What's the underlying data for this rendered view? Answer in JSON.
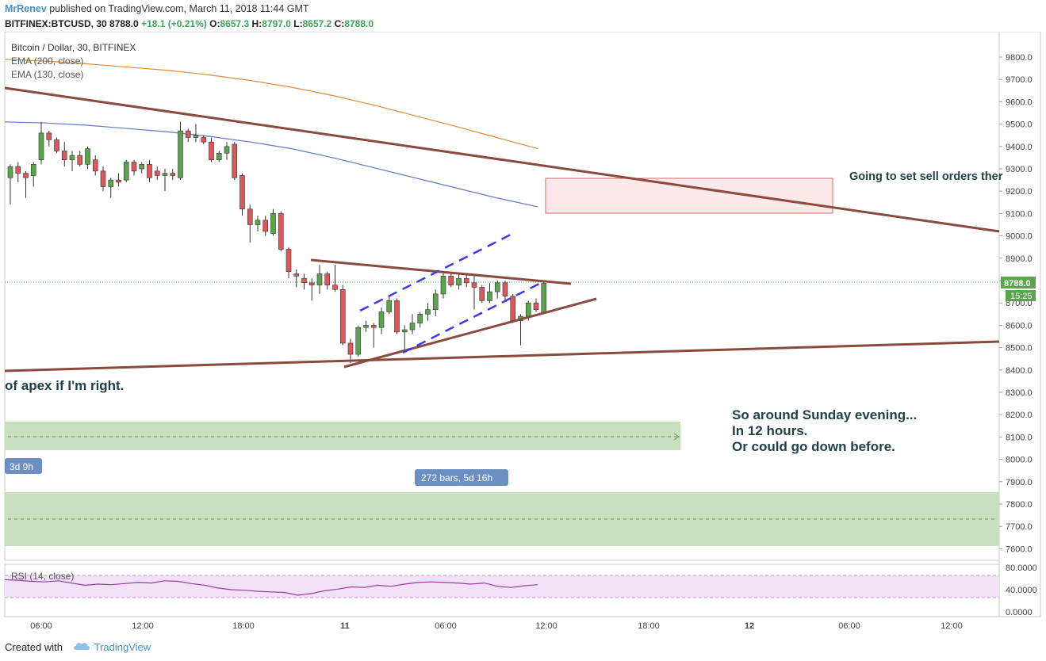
{
  "publish": {
    "author": "MrRenev",
    "text": " published on TradingView.com, March 11, 2018 11:44 GMT"
  },
  "symbol": {
    "name": "BITFINEX:BTCUSD, 30",
    "last": "8788.0",
    "change": "+18.1 (+0.21%)",
    "o_label": "O:",
    "o": "8657.3",
    "h_label": "H:",
    "h": "8797.0",
    "l_label": "L:",
    "l": "8657.2",
    "c_label": "C:",
    "c": "8788.0"
  },
  "legend": {
    "title": "Bitcoin / Dollar, 30, BITFINEX",
    "ema200": "EMA (200, close)",
    "ema130": "EMA (130, close)"
  },
  "annotations": {
    "sell_note": "Going to set sell orders ther",
    "apex_note": "of apex if I'm right.",
    "sunday_1": "So around Sunday evening...",
    "sunday_2": "In 12 hours.",
    "sunday_3": "Or could go down before.",
    "badge_3d": "3d 9h",
    "badge_bars": "272 bars, 5d 16h"
  },
  "price_scale": {
    "last_label": "8788.0",
    "countdown": "15:25",
    "ticks": [
      "9800.0",
      "9700.0",
      "9600.0",
      "9500.0",
      "9400.0",
      "9300.0",
      "9200.0",
      "9100.0",
      "9000.0",
      "8900.0",
      "8800.0",
      "8700.0",
      "8600.0",
      "8500.0",
      "8400.0",
      "8300.0",
      "8200.0",
      "8100.0",
      "8000.0",
      "7900.0",
      "7800.0",
      "7700.0",
      "7600.0"
    ]
  },
  "rsi": {
    "label": "RSI (14, close)",
    "ticks": [
      "80.0000",
      "40.0000",
      "0.0000"
    ]
  },
  "time_axis": [
    "06:00",
    "12:00",
    "18:00",
    "11",
    "06:00",
    "12:00",
    "18:00",
    "12",
    "06:00",
    "12:00"
  ],
  "footer": {
    "created": "Created with",
    "brand": "TradingView"
  },
  "colors": {
    "up": "#5ba44e",
    "down": "#d8585b",
    "ema200": "#e08a3c",
    "ema130": "#5a78c8",
    "trend": "#8a4a3e",
    "channel": "#3a3aee",
    "zone_green": "#c7e0bd",
    "zone_red": "#fbe8e8",
    "rsi_band": "#f1e2f8",
    "rsi_line": "#9a3aa6",
    "badge": "#6b8fc0"
  },
  "chart_data": {
    "type": "candlestick",
    "title": "Bitcoin / Dollar, 30, BITFINEX",
    "interval": "30 min",
    "ylim": [
      7550,
      9900
    ],
    "rsi_ylim": [
      0,
      80
    ],
    "candles": [
      {
        "o": 9260,
        "h": 9320,
        "l": 9140,
        "c": 9310
      },
      {
        "o": 9310,
        "h": 9330,
        "l": 9240,
        "c": 9280
      },
      {
        "o": 9280,
        "h": 9290,
        "l": 9170,
        "c": 9260
      },
      {
        "o": 9270,
        "h": 9330,
        "l": 9220,
        "c": 9320
      },
      {
        "o": 9340,
        "h": 9510,
        "l": 9320,
        "c": 9460
      },
      {
        "o": 9460,
        "h": 9470,
        "l": 9400,
        "c": 9430
      },
      {
        "o": 9430,
        "h": 9440,
        "l": 9370,
        "c": 9380
      },
      {
        "o": 9380,
        "h": 9420,
        "l": 9310,
        "c": 9340
      },
      {
        "o": 9340,
        "h": 9380,
        "l": 9290,
        "c": 9360
      },
      {
        "o": 9360,
        "h": 9380,
        "l": 9310,
        "c": 9320
      },
      {
        "o": 9320,
        "h": 9400,
        "l": 9300,
        "c": 9390
      },
      {
        "o": 9340,
        "h": 9360,
        "l": 9270,
        "c": 9290
      },
      {
        "o": 9290,
        "h": 9310,
        "l": 9200,
        "c": 9220
      },
      {
        "o": 9220,
        "h": 9260,
        "l": 9170,
        "c": 9250
      },
      {
        "o": 9250,
        "h": 9280,
        "l": 9220,
        "c": 9240
      },
      {
        "o": 9250,
        "h": 9340,
        "l": 9240,
        "c": 9330
      },
      {
        "o": 9330,
        "h": 9340,
        "l": 9270,
        "c": 9290
      },
      {
        "o": 9300,
        "h": 9330,
        "l": 9280,
        "c": 9320
      },
      {
        "o": 9320,
        "h": 9340,
        "l": 9240,
        "c": 9260
      },
      {
        "o": 9290,
        "h": 9310,
        "l": 9250,
        "c": 9270
      },
      {
        "o": 9270,
        "h": 9300,
        "l": 9200,
        "c": 9280
      },
      {
        "o": 9280,
        "h": 9300,
        "l": 9250,
        "c": 9270
      },
      {
        "o": 9260,
        "h": 9510,
        "l": 9250,
        "c": 9470
      },
      {
        "o": 9470,
        "h": 9480,
        "l": 9420,
        "c": 9440
      },
      {
        "o": 9440,
        "h": 9500,
        "l": 9420,
        "c": 9450
      },
      {
        "o": 9440,
        "h": 9450,
        "l": 9410,
        "c": 9420
      },
      {
        "o": 9420,
        "h": 9440,
        "l": 9330,
        "c": 9340
      },
      {
        "o": 9340,
        "h": 9380,
        "l": 9330,
        "c": 9370
      },
      {
        "o": 9370,
        "h": 9420,
        "l": 9340,
        "c": 9400
      },
      {
        "o": 9410,
        "h": 9420,
        "l": 9250,
        "c": 9260
      },
      {
        "o": 9270,
        "h": 9280,
        "l": 9090,
        "c": 9120
      },
      {
        "o": 9120,
        "h": 9140,
        "l": 8970,
        "c": 9050
      },
      {
        "o": 9050,
        "h": 9090,
        "l": 9020,
        "c": 9070
      },
      {
        "o": 9070,
        "h": 9090,
        "l": 9000,
        "c": 9020
      },
      {
        "o": 9010,
        "h": 9120,
        "l": 9000,
        "c": 9100
      },
      {
        "o": 9100,
        "h": 9110,
        "l": 8930,
        "c": 8940
      },
      {
        "o": 8940,
        "h": 8950,
        "l": 8810,
        "c": 8840
      },
      {
        "o": 8830,
        "h": 8850,
        "l": 8770,
        "c": 8820
      },
      {
        "o": 8810,
        "h": 8830,
        "l": 8760,
        "c": 8790
      },
      {
        "o": 8790,
        "h": 8810,
        "l": 8710,
        "c": 8780
      },
      {
        "o": 8780,
        "h": 8870,
        "l": 8740,
        "c": 8830
      },
      {
        "o": 8830,
        "h": 8840,
        "l": 8760,
        "c": 8780
      },
      {
        "o": 8780,
        "h": 8870,
        "l": 8750,
        "c": 8760
      },
      {
        "o": 8760,
        "h": 8780,
        "l": 8510,
        "c": 8520
      },
      {
        "o": 8520,
        "h": 8540,
        "l": 8430,
        "c": 8470
      },
      {
        "o": 8470,
        "h": 8600,
        "l": 8460,
        "c": 8590
      },
      {
        "o": 8590,
        "h": 8620,
        "l": 8570,
        "c": 8600
      },
      {
        "o": 8600,
        "h": 8610,
        "l": 8500,
        "c": 8590
      },
      {
        "o": 8590,
        "h": 8680,
        "l": 8560,
        "c": 8660
      },
      {
        "o": 8660,
        "h": 8730,
        "l": 8650,
        "c": 8710
      },
      {
        "o": 8710,
        "h": 8720,
        "l": 8560,
        "c": 8570
      },
      {
        "o": 8570,
        "h": 8600,
        "l": 8480,
        "c": 8580
      },
      {
        "o": 8580,
        "h": 8650,
        "l": 8560,
        "c": 8610
      },
      {
        "o": 8610,
        "h": 8660,
        "l": 8590,
        "c": 8650
      },
      {
        "o": 8650,
        "h": 8700,
        "l": 8620,
        "c": 8670
      },
      {
        "o": 8670,
        "h": 8760,
        "l": 8640,
        "c": 8740
      },
      {
        "o": 8740,
        "h": 8840,
        "l": 8720,
        "c": 8820
      },
      {
        "o": 8820,
        "h": 8830,
        "l": 8770,
        "c": 8780
      },
      {
        "o": 8780,
        "h": 8830,
        "l": 8760,
        "c": 8810
      },
      {
        "o": 8810,
        "h": 8830,
        "l": 8770,
        "c": 8790
      },
      {
        "o": 8790,
        "h": 8820,
        "l": 8670,
        "c": 8770
      },
      {
        "o": 8770,
        "h": 8780,
        "l": 8700,
        "c": 8710
      },
      {
        "o": 8710,
        "h": 8790,
        "l": 8700,
        "c": 8750
      },
      {
        "o": 8750,
        "h": 8800,
        "l": 8720,
        "c": 8790
      },
      {
        "o": 8790,
        "h": 8800,
        "l": 8710,
        "c": 8730
      },
      {
        "o": 8730,
        "h": 8740,
        "l": 8610,
        "c": 8620
      },
      {
        "o": 8620,
        "h": 8650,
        "l": 8510,
        "c": 8640
      },
      {
        "o": 8640,
        "h": 8710,
        "l": 8620,
        "c": 8700
      },
      {
        "o": 8700,
        "h": 8720,
        "l": 8660,
        "c": 8670
      },
      {
        "o": 8657.3,
        "h": 8797.0,
        "l": 8657.2,
        "c": 8788.0
      }
    ],
    "ema200": [
      9790,
      9782,
      9770,
      9755,
      9740,
      9720,
      9695,
      9665,
      9628,
      9585,
      9538,
      9490,
      9440,
      9390
    ],
    "ema130": [
      9510,
      9505,
      9495,
      9480,
      9465,
      9445,
      9420,
      9390,
      9350,
      9305,
      9260,
      9215,
      9170,
      9130
    ],
    "rsi": [
      58,
      57,
      55,
      54,
      56,
      52,
      48,
      50,
      49,
      51,
      53,
      52,
      56,
      55,
      51,
      48,
      43,
      40,
      39,
      37,
      36,
      35,
      30,
      33,
      38,
      41,
      45,
      44,
      48,
      46,
      50,
      53,
      54,
      53,
      52,
      50,
      52,
      46,
      44,
      47,
      49
    ],
    "rsi_levels": [
      70,
      30
    ]
  }
}
